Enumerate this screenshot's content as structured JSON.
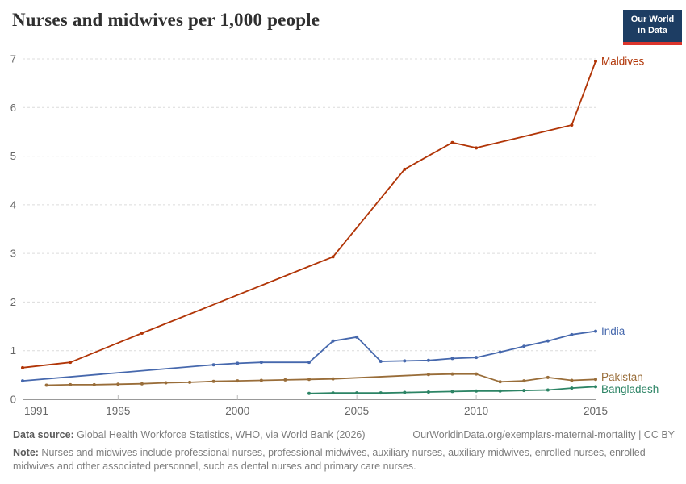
{
  "header": {
    "title": "Nurses and midwives per 1,000 people",
    "logo": {
      "line1": "Our World",
      "line2": "in Data"
    }
  },
  "chart_data": {
    "type": "line",
    "title": "Nurses and midwives per 1,000 people",
    "xlabel": "",
    "ylabel": "",
    "xlim": [
      1991,
      2015
    ],
    "ylim": [
      0,
      7
    ],
    "grid": "horizontal-dashed",
    "legend_position": "line-end-labels",
    "x_ticks": [
      1991,
      1995,
      2000,
      2005,
      2010,
      2015
    ],
    "y_ticks": [
      0,
      1,
      2,
      3,
      4,
      5,
      6,
      7
    ],
    "series": [
      {
        "name": "Maldives",
        "color": "#b13507",
        "points": [
          [
            1991,
            0.65
          ],
          [
            1993,
            0.76
          ],
          [
            1996,
            1.36
          ],
          [
            2004,
            2.93
          ],
          [
            2007,
            4.73
          ],
          [
            2009,
            5.28
          ],
          [
            2010,
            5.17
          ],
          [
            2014,
            5.64
          ],
          [
            2015,
            6.95
          ]
        ]
      },
      {
        "name": "India",
        "color": "#4668ad",
        "points": [
          [
            1991,
            0.38
          ],
          [
            1999,
            0.71
          ],
          [
            2000,
            0.74
          ],
          [
            2001,
            0.76
          ],
          [
            2003,
            0.76
          ],
          [
            2004,
            1.2
          ],
          [
            2005,
            1.28
          ],
          [
            2006,
            0.78
          ],
          [
            2007,
            0.79
          ],
          [
            2008,
            0.8
          ],
          [
            2009,
            0.84
          ],
          [
            2010,
            0.86
          ],
          [
            2011,
            0.97
          ],
          [
            2012,
            1.09
          ],
          [
            2013,
            1.2
          ],
          [
            2014,
            1.33
          ],
          [
            2015,
            1.4
          ]
        ]
      },
      {
        "name": "Pakistan",
        "color": "#996d39",
        "points": [
          [
            1992,
            0.29
          ],
          [
            1993,
            0.3
          ],
          [
            1994,
            0.3
          ],
          [
            1995,
            0.31
          ],
          [
            1996,
            0.32
          ],
          [
            1997,
            0.34
          ],
          [
            1998,
            0.35
          ],
          [
            1999,
            0.37
          ],
          [
            2000,
            0.38
          ],
          [
            2001,
            0.39
          ],
          [
            2002,
            0.4
          ],
          [
            2003,
            0.41
          ],
          [
            2004,
            0.42
          ],
          [
            2008,
            0.51
          ],
          [
            2009,
            0.52
          ],
          [
            2010,
            0.52
          ],
          [
            2011,
            0.36
          ],
          [
            2012,
            0.38
          ],
          [
            2013,
            0.45
          ],
          [
            2014,
            0.39
          ],
          [
            2015,
            0.41
          ]
        ]
      },
      {
        "name": "Bangladesh",
        "color": "#2c8465",
        "points": [
          [
            2003,
            0.12
          ],
          [
            2004,
            0.13
          ],
          [
            2005,
            0.13
          ],
          [
            2006,
            0.13
          ],
          [
            2007,
            0.14
          ],
          [
            2008,
            0.15
          ],
          [
            2009,
            0.16
          ],
          [
            2010,
            0.17
          ],
          [
            2011,
            0.17
          ],
          [
            2012,
            0.18
          ],
          [
            2013,
            0.19
          ],
          [
            2014,
            0.23
          ],
          [
            2015,
            0.26
          ]
        ]
      }
    ]
  },
  "footer": {
    "data_source_label": "Data source:",
    "data_source": " Global Health Workforce Statistics, WHO, via World Bank (2026)",
    "url": "OurWorldinData.org/exemplars-maternal-mortality",
    "license_sep": " | ",
    "license": "CC BY",
    "note_label": "Note:",
    "note": " Nurses and midwives include professional nurses, professional midwives, auxiliary nurses, auxiliary midwives, enrolled nurses, enrolled midwives and other associated personnel, such as dental nurses and primary care nurses."
  }
}
